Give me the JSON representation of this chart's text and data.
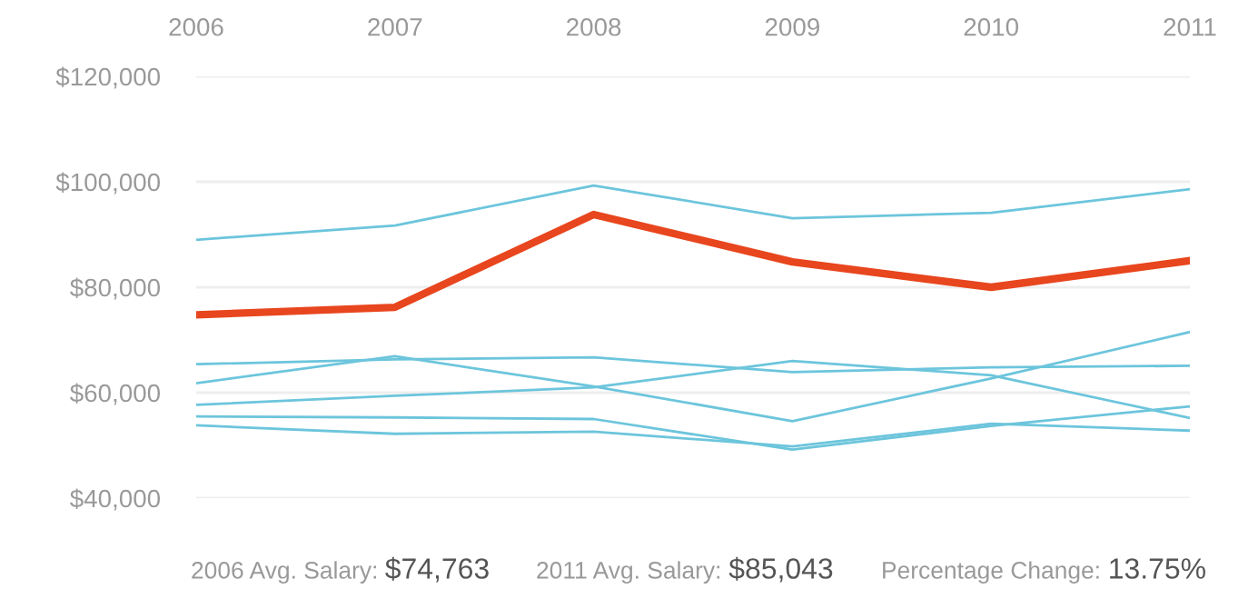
{
  "chart_data": {
    "type": "line",
    "x": [
      2006,
      2007,
      2008,
      2009,
      2010,
      2011
    ],
    "series": [
      {
        "color": "#6cc5dc",
        "values": [
          89000,
          91700,
          99300,
          93100,
          94100,
          98600
        ]
      },
      {
        "color": "#6cc5dc",
        "values": [
          65400,
          66300,
          66700,
          63900,
          64800,
          65100
        ]
      },
      {
        "color": "#6cc5dc",
        "values": [
          61800,
          66900,
          61200,
          54600,
          62700,
          71500
        ]
      },
      {
        "color": "#6cc5dc",
        "values": [
          57700,
          59400,
          61000,
          66000,
          63300,
          55200
        ]
      },
      {
        "color": "#6cc5dc",
        "values": [
          55500,
          55300,
          55000,
          49200,
          53700,
          57400
        ]
      },
      {
        "color": "#6cc5dc",
        "values": [
          53800,
          52200,
          52600,
          49800,
          54100,
          52800
        ]
      },
      {
        "color": "#e8461e",
        "values": [
          74763,
          76200,
          93800,
          84800,
          80000,
          85043
        ]
      }
    ],
    "xlim": [
      2006,
      2011
    ],
    "xticks": [
      2006,
      2007,
      2008,
      2009,
      2010,
      2011
    ],
    "ylim": [
      40000,
      120000
    ],
    "yticks": [
      {
        "value": 40000,
        "label": "$40,000"
      },
      {
        "value": 60000,
        "label": "$60,000"
      },
      {
        "value": 80000,
        "label": "$80,000"
      },
      {
        "value": 100000,
        "label": "$100,000"
      },
      {
        "value": 120000,
        "label": "$120,000"
      }
    ],
    "grid": "y",
    "legend": false,
    "marker": "none",
    "line_style": "solid",
    "annotations": [
      "2006 Avg. Salary: $74,763",
      "2011 Avg. Salary: $85,043",
      "Percentage Change: 13.75%"
    ]
  }
}
